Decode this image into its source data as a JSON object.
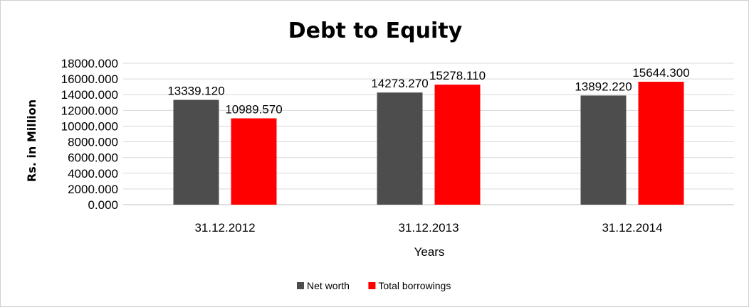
{
  "chart_data": {
    "type": "bar",
    "title": "Debt to Equity",
    "xlabel": "Years",
    "ylabel": "Rs. in Million",
    "categories": [
      "31.12.2012",
      "31.12.2013",
      "31.12.2014"
    ],
    "series": [
      {
        "name": "Net worth",
        "values": [
          13339.12,
          14273.27,
          13892.22
        ],
        "labels": [
          "13339.120",
          "14273.270",
          "13892.220"
        ],
        "color": "#4d4d4d"
      },
      {
        "name": "Total borrowings",
        "values": [
          10989.57,
          15278.11,
          15644.3
        ],
        "labels": [
          "10989.570",
          "15278.110",
          "15644.300"
        ],
        "color": "#ff0000"
      }
    ],
    "ylim": [
      0,
      18000
    ],
    "yticks": [
      0,
      2000,
      4000,
      6000,
      8000,
      10000,
      12000,
      14000,
      16000,
      18000
    ],
    "ytick_labels": [
      "0.000",
      "2000.000",
      "4000.000",
      "6000.000",
      "8000.000",
      "10000.000",
      "12000.000",
      "14000.000",
      "16000.000",
      "18000.000"
    ],
    "grid": true,
    "legend": "bottom"
  }
}
